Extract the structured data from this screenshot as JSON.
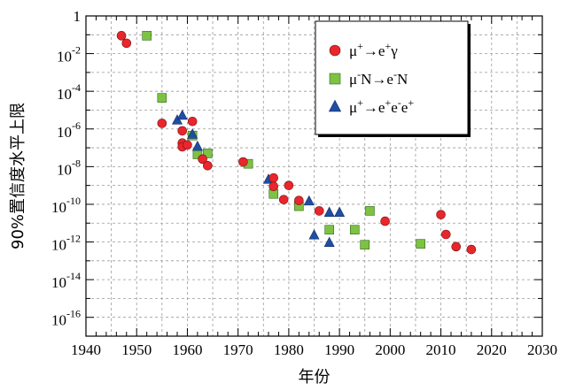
{
  "chart_data": {
    "type": "scatter",
    "title": "",
    "xlabel": "年份",
    "ylabel": "90%置信度水平上限",
    "xlim": [
      1940,
      2030
    ],
    "ylim_log10": [
      -17,
      0
    ],
    "y_scale": "log",
    "grid": true,
    "legend_position": "top-right",
    "x_ticks": [
      {
        "v": 1940,
        "label": "1940"
      },
      {
        "v": 1950,
        "label": "1950"
      },
      {
        "v": 1960,
        "label": "1960"
      },
      {
        "v": 1970,
        "label": "1970"
      },
      {
        "v": 1980,
        "label": "1980"
      },
      {
        "v": 1990,
        "label": "1990"
      },
      {
        "v": 2000,
        "label": "2000"
      },
      {
        "v": 2010,
        "label": "2010"
      },
      {
        "v": 2020,
        "label": "2020"
      },
      {
        "v": 2030,
        "label": "2030"
      }
    ],
    "y_ticks": [
      {
        "e": 0,
        "base": "1",
        "exp": ""
      },
      {
        "e": -2,
        "base": "10",
        "exp": "-2"
      },
      {
        "e": -4,
        "base": "10",
        "exp": "-4"
      },
      {
        "e": -6,
        "base": "10",
        "exp": "-6"
      },
      {
        "e": -8,
        "base": "10",
        "exp": "-8"
      },
      {
        "e": -10,
        "base": "10",
        "exp": "-10"
      },
      {
        "e": -12,
        "base": "10",
        "exp": "-12"
      },
      {
        "e": -14,
        "base": "10",
        "exp": "-14"
      },
      {
        "e": -16,
        "base": "10",
        "exp": "-16"
      }
    ],
    "series": [
      {
        "name": "μ⁺→e⁺γ",
        "label_base": "μ",
        "label_parts": [
          [
            "μ",
            ""
          ],
          [
            "+",
            "sup"
          ],
          [
            "→e",
            ""
          ],
          [
            "+",
            "sup"
          ],
          [
            "γ",
            ""
          ]
        ],
        "marker": "circle",
        "color": "#e8262c",
        "points": [
          [
            1947,
            -1.05
          ],
          [
            1948,
            -1.45
          ],
          [
            1955,
            -5.7
          ],
          [
            1959,
            -6.1
          ],
          [
            1959,
            -6.75
          ],
          [
            1959,
            -6.95
          ],
          [
            1960,
            -6.85
          ],
          [
            1961,
            -5.6
          ],
          [
            1963,
            -7.6
          ],
          [
            1964,
            -7.95
          ],
          [
            1971,
            -7.75
          ],
          [
            1977,
            -8.6
          ],
          [
            1977,
            -9.05
          ],
          [
            1979,
            -9.75
          ],
          [
            1980,
            -9.0
          ],
          [
            1982,
            -9.8
          ],
          [
            1986,
            -10.35
          ],
          [
            1999,
            -10.9
          ],
          [
            2010,
            -10.55
          ],
          [
            2011,
            -11.6
          ],
          [
            2013,
            -12.25
          ],
          [
            2016,
            -12.4
          ]
        ]
      },
      {
        "name": "μ⁻N→e⁻N",
        "label_parts": [
          [
            "μ",
            ""
          ],
          [
            "-",
            "sup"
          ],
          [
            "N→e",
            ""
          ],
          [
            "-",
            "sup"
          ],
          [
            "N",
            ""
          ]
        ],
        "marker": "square",
        "color": "#7dc242",
        "points": [
          [
            1952,
            -1.05
          ],
          [
            1955,
            -4.35
          ],
          [
            1961,
            -6.35
          ],
          [
            1962,
            -7.35
          ],
          [
            1964,
            -7.3
          ],
          [
            1972,
            -7.85
          ],
          [
            1977,
            -9.45
          ],
          [
            1982,
            -10.1
          ],
          [
            1988,
            -11.35
          ],
          [
            1993,
            -11.35
          ],
          [
            1995,
            -12.15
          ],
          [
            1996,
            -10.35
          ],
          [
            2006,
            -12.1
          ]
        ]
      },
      {
        "name": "μ⁺→e⁺e⁻e⁺",
        "label_parts": [
          [
            "μ",
            ""
          ],
          [
            "+",
            "sup"
          ],
          [
            "→e",
            ""
          ],
          [
            "+",
            "sup"
          ],
          [
            "e",
            ""
          ],
          [
            "-",
            "sup"
          ],
          [
            "e",
            ""
          ],
          [
            "+",
            "sup"
          ]
        ],
        "marker": "triangle",
        "color": "#1f4fa3",
        "points": [
          [
            1958,
            -5.55
          ],
          [
            1959,
            -5.3
          ],
          [
            1961,
            -6.3
          ],
          [
            1962,
            -6.95
          ],
          [
            1976,
            -8.7
          ],
          [
            1984,
            -9.85
          ],
          [
            1985,
            -11.65
          ],
          [
            1988,
            -10.45
          ],
          [
            1988,
            -12.05
          ],
          [
            1990,
            -10.45
          ]
        ]
      }
    ]
  }
}
